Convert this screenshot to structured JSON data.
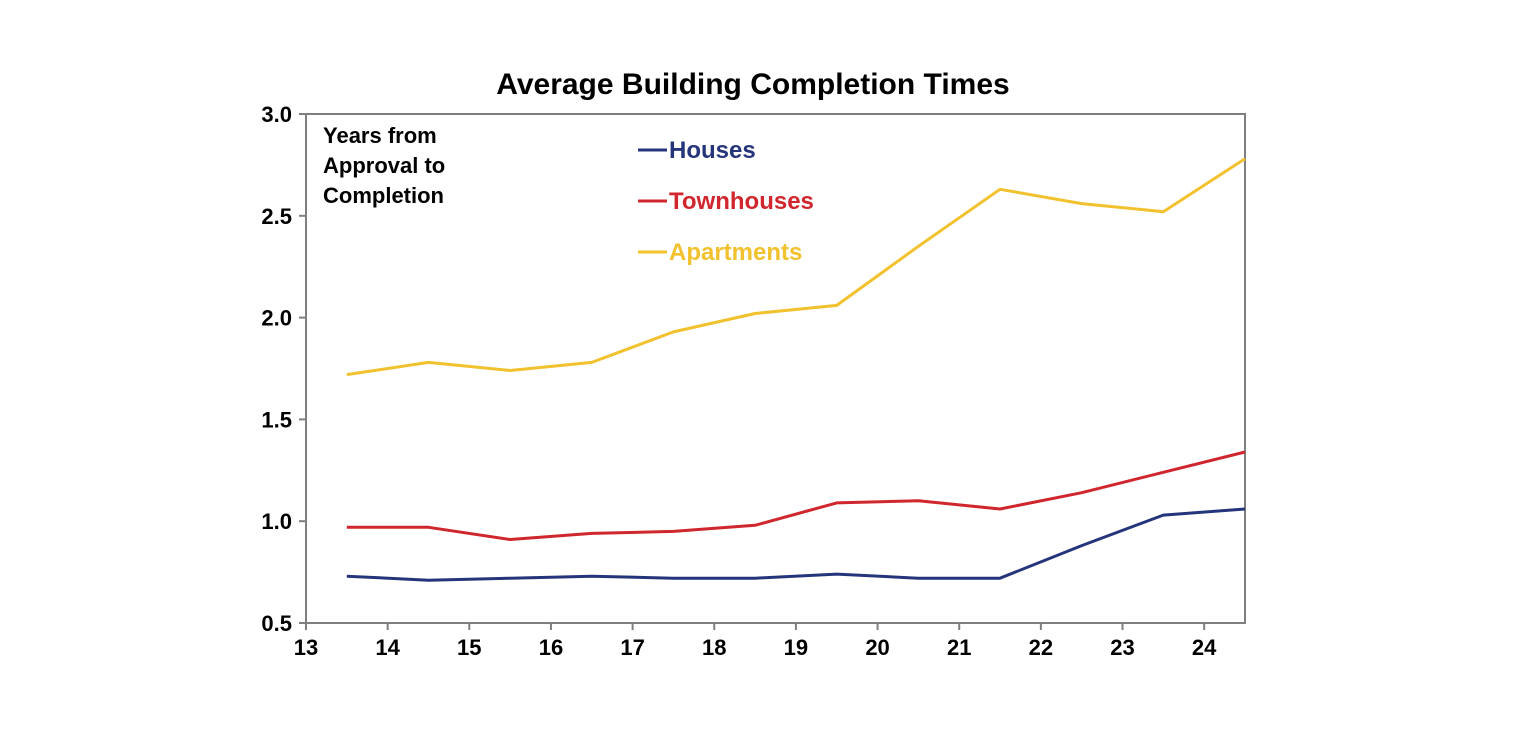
{
  "chart_data": {
    "type": "line",
    "title": "Average Building Completion Times",
    "xlabel": "",
    "ylabel": "",
    "annotation": [
      "Years from",
      "Approval to",
      "Completion"
    ],
    "x_ticks": [
      "13",
      "14",
      "15",
      "16",
      "17",
      "18",
      "19",
      "20",
      "21",
      "22",
      "23",
      "24"
    ],
    "x_range": [
      13,
      24.5
    ],
    "y_ticks": [
      "0.5",
      "1.0",
      "1.5",
      "2.0",
      "2.5",
      "3.0"
    ],
    "y_range": [
      0.5,
      3.0
    ],
    "grid": false,
    "legend_position": "top-center",
    "x": [
      13.5,
      14.5,
      15.5,
      16.5,
      17.5,
      18.5,
      19.5,
      20.5,
      21.5,
      22.5,
      23.5,
      24.5
    ],
    "series": [
      {
        "name": "Houses",
        "color": "#25357c",
        "values": [
          0.73,
          0.71,
          0.72,
          0.73,
          0.72,
          0.72,
          0.74,
          0.72,
          0.72,
          0.88,
          1.03,
          1.06
        ]
      },
      {
        "name": "Townhouses",
        "color": "#d0262d",
        "values": [
          0.97,
          0.97,
          0.91,
          0.94,
          0.95,
          0.98,
          1.09,
          1.1,
          1.06,
          1.14,
          1.24,
          1.34
        ]
      },
      {
        "name": "Apartments",
        "color": "#f2c12e",
        "values": [
          1.72,
          1.78,
          1.74,
          1.78,
          1.93,
          2.02,
          2.06,
          2.35,
          2.63,
          2.56,
          2.52,
          2.78
        ]
      }
    ]
  }
}
